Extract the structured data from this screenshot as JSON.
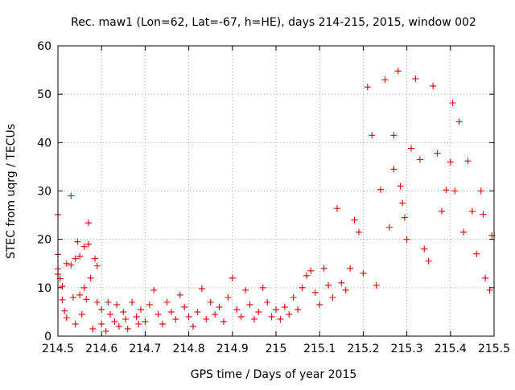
{
  "chart_data": {
    "type": "scatter",
    "title": "Rec. maw1 (Lon=62, Lat=-67, h=HE), days 214-215, 2015, window 002",
    "xlabel": "GPS time / Days of year 2015",
    "ylabel": "STEC from uqrg / TECUs",
    "xlim": [
      214.5,
      215.5
    ],
    "ylim": [
      0,
      60
    ],
    "xticks": [
      214.5,
      214.6,
      214.7,
      214.8,
      214.9,
      215,
      215.1,
      215.2,
      215.3,
      215.4,
      215.5
    ],
    "xtick_labels": [
      "214.5",
      "214.6",
      "214.7",
      "214.8",
      "214.9",
      "215",
      "215.1",
      "215.2",
      "215.3",
      "215.4",
      "215.5"
    ],
    "yticks": [
      0,
      10,
      20,
      30,
      40,
      50,
      60
    ],
    "ytick_labels": [
      "0",
      "10",
      "20",
      "30",
      "40",
      "50",
      "60"
    ],
    "grid": true,
    "legend": "none",
    "marker": "plus",
    "color": "#e00000",
    "points": [
      [
        214.5,
        25.1
      ],
      [
        214.5,
        16.9
      ],
      [
        214.5,
        13.9
      ],
      [
        214.5,
        12.8
      ],
      [
        214.505,
        11.9
      ],
      [
        214.51,
        10.3
      ],
      [
        214.51,
        7.5
      ],
      [
        214.515,
        5.2
      ],
      [
        214.52,
        3.8
      ],
      [
        214.52,
        15.0
      ],
      [
        214.53,
        29.0
      ],
      [
        214.53,
        14.7
      ],
      [
        214.535,
        8.0
      ],
      [
        214.54,
        16.0
      ],
      [
        214.54,
        2.5
      ],
      [
        214.545,
        19.5
      ],
      [
        214.55,
        16.5
      ],
      [
        214.55,
        8.5
      ],
      [
        214.555,
        4.5
      ],
      [
        214.56,
        18.5
      ],
      [
        214.56,
        10.0
      ],
      [
        214.565,
        7.6
      ],
      [
        214.57,
        23.4
      ],
      [
        214.57,
        19.0
      ],
      [
        214.575,
        12.0
      ],
      [
        214.58,
        1.5
      ],
      [
        214.585,
        16.0
      ],
      [
        214.59,
        14.5
      ],
      [
        214.59,
        7.0
      ],
      [
        214.6,
        5.5
      ],
      [
        214.6,
        2.5
      ],
      [
        214.61,
        1.0
      ],
      [
        214.615,
        7.0
      ],
      [
        214.62,
        4.5
      ],
      [
        214.63,
        3.0
      ],
      [
        214.635,
        6.5
      ],
      [
        214.64,
        2.0
      ],
      [
        214.65,
        5.0
      ],
      [
        214.655,
        3.5
      ],
      [
        214.66,
        1.5
      ],
      [
        214.67,
        7.0
      ],
      [
        214.68,
        4.0
      ],
      [
        214.685,
        2.5
      ],
      [
        214.69,
        5.5
      ],
      [
        214.7,
        3.0
      ],
      [
        214.71,
        6.5
      ],
      [
        214.72,
        9.5
      ],
      [
        214.73,
        4.5
      ],
      [
        214.74,
        2.5
      ],
      [
        214.75,
        7.0
      ],
      [
        214.76,
        5.0
      ],
      [
        214.77,
        3.5
      ],
      [
        214.78,
        8.5
      ],
      [
        214.79,
        6.0
      ],
      [
        214.8,
        4.0
      ],
      [
        214.81,
        2.0
      ],
      [
        214.82,
        5.0
      ],
      [
        214.83,
        9.8
      ],
      [
        214.84,
        3.5
      ],
      [
        214.85,
        7.0
      ],
      [
        214.86,
        4.5
      ],
      [
        214.87,
        6.0
      ],
      [
        214.88,
        3.0
      ],
      [
        214.89,
        8.0
      ],
      [
        214.9,
        12.0
      ],
      [
        214.91,
        5.5
      ],
      [
        214.92,
        4.0
      ],
      [
        214.93,
        9.5
      ],
      [
        214.94,
        6.5
      ],
      [
        214.95,
        3.5
      ],
      [
        214.96,
        5.0
      ],
      [
        214.97,
        10.0
      ],
      [
        214.98,
        7.0
      ],
      [
        214.99,
        4.0
      ],
      [
        215.0,
        5.5
      ],
      [
        215.01,
        3.5
      ],
      [
        215.02,
        6.0
      ],
      [
        215.03,
        4.5
      ],
      [
        215.04,
        8.0
      ],
      [
        215.05,
        5.5
      ],
      [
        215.06,
        10.0
      ],
      [
        215.07,
        12.5
      ],
      [
        215.08,
        13.5
      ],
      [
        215.09,
        9.0
      ],
      [
        215.1,
        6.5
      ],
      [
        215.11,
        14.0
      ],
      [
        215.12,
        10.5
      ],
      [
        215.13,
        8.0
      ],
      [
        215.14,
        26.4
      ],
      [
        215.15,
        11.0
      ],
      [
        215.16,
        9.5
      ],
      [
        215.17,
        14.0
      ],
      [
        215.18,
        24.0
      ],
      [
        215.19,
        21.5
      ],
      [
        215.2,
        13.0
      ],
      [
        215.21,
        51.5
      ],
      [
        215.22,
        41.5
      ],
      [
        215.23,
        10.5
      ],
      [
        215.24,
        30.3
      ],
      [
        215.25,
        53.0
      ],
      [
        215.26,
        22.5
      ],
      [
        215.27,
        34.5
      ],
      [
        215.27,
        41.5
      ],
      [
        215.28,
        54.8
      ],
      [
        215.285,
        31.0
      ],
      [
        215.29,
        27.5
      ],
      [
        215.295,
        24.5
      ],
      [
        215.3,
        20.0
      ],
      [
        215.31,
        38.8
      ],
      [
        215.32,
        53.2
      ],
      [
        215.33,
        36.5
      ],
      [
        215.34,
        18.0
      ],
      [
        215.35,
        15.5
      ],
      [
        215.36,
        51.7
      ],
      [
        215.37,
        37.8
      ],
      [
        215.38,
        25.8
      ],
      [
        215.39,
        30.2
      ],
      [
        215.4,
        36.0
      ],
      [
        215.405,
        48.2
      ],
      [
        215.41,
        30.0
      ],
      [
        215.42,
        44.3
      ],
      [
        215.43,
        21.5
      ],
      [
        215.44,
        36.2
      ],
      [
        215.45,
        25.8
      ],
      [
        215.46,
        17.0
      ],
      [
        215.47,
        30.0
      ],
      [
        215.475,
        25.2
      ],
      [
        215.48,
        12.0
      ],
      [
        215.49,
        9.5
      ],
      [
        215.495,
        20.8
      ]
    ]
  }
}
